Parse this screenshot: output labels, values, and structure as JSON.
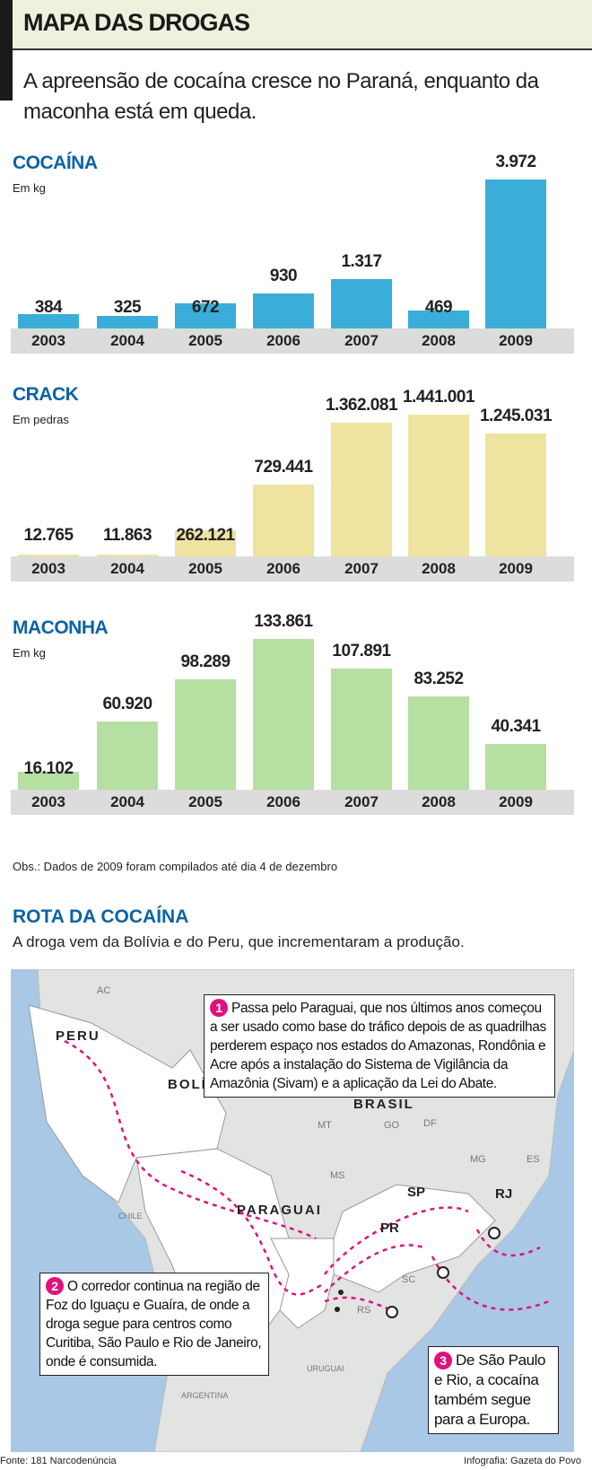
{
  "header": {
    "title": "MAPA DAS DROGAS",
    "subtitle": "A apreensão de cocaína cresce no Paraná, enquanto da maconha está em queda."
  },
  "chart_data": [
    {
      "type": "bar",
      "title": "COCAÍNA",
      "ylabel": "Em kg",
      "color": "#3aaed8",
      "categories": [
        "2003",
        "2004",
        "2005",
        "2006",
        "2007",
        "2008",
        "2009"
      ],
      "values": [
        384,
        325,
        672,
        930,
        1317,
        469,
        3972
      ],
      "labels": [
        "384",
        "325",
        "672",
        "930",
        "1.317",
        "469",
        "3.972"
      ]
    },
    {
      "type": "bar",
      "title": "CRACK",
      "ylabel": "Em pedras",
      "color": "#efe3a0",
      "categories": [
        "2003",
        "2004",
        "2005",
        "2006",
        "2007",
        "2008",
        "2009"
      ],
      "values": [
        12765,
        11863,
        262121,
        729441,
        1362081,
        1441001,
        1245031
      ],
      "labels": [
        "12.765",
        "11.863",
        "262.121",
        "729.441",
        "1.362.081",
        "1.441.001",
        "1.245.031"
      ]
    },
    {
      "type": "bar",
      "title": "MACONHA",
      "ylabel": "Em kg",
      "color": "#b6dfa2",
      "categories": [
        "2003",
        "2004",
        "2005",
        "2006",
        "2007",
        "2008",
        "2009"
      ],
      "values": [
        16102,
        60920,
        98289,
        133861,
        107891,
        83252,
        40341
      ],
      "labels": [
        "16.102",
        "60.920",
        "98.289",
        "133.861",
        "107.891",
        "83.252",
        "40.341"
      ]
    }
  ],
  "obs": "Obs.: Dados de 2009 foram compilados até dia 4 de dezembro",
  "route": {
    "title": "ROTA DA COCAÍNA",
    "subtitle": "A droga vem da Bolívia e do Peru, que incrementaram a produção.",
    "countries": [
      "PERU",
      "BOLÍVIA",
      "BRASIL",
      "PARAGUAI"
    ],
    "states": [
      "AC",
      "MT",
      "GO",
      "DF",
      "MS",
      "MG",
      "ES",
      "SP",
      "RJ",
      "PR",
      "SC",
      "RS",
      "CHILE",
      "URUGUAI",
      "ARGENTINA"
    ],
    "notes": [
      {
        "num": "1",
        "text": "Passa pelo Paraguai, que nos últimos anos começou a ser usado como base do tráfico depois de as quadrilhas perderem espaço nos estados do Amazonas, Rondônia e Acre após a instalação do Sistema de Vigilância da Amazônia (Sivam) e a aplicação da Lei do Abate."
      },
      {
        "num": "2",
        "text": "O corredor continua na região de Foz do Iguaçu e Guaíra, de onde a droga segue para centros como Curitiba, São Paulo e Rio de Janeiro, onde é consumida."
      },
      {
        "num": "3",
        "text": "De São Paulo e Rio, a cocaína também segue para a Europa."
      }
    ],
    "colors": {
      "route": "#e0117f",
      "sea": "#a9c8e6",
      "land": "#e2e4e2",
      "highlight": "#ffffff"
    }
  },
  "footer": {
    "source": "Fonte: 181 Narcodenúncia",
    "credit": "Infografia: Gazeta do Povo"
  }
}
